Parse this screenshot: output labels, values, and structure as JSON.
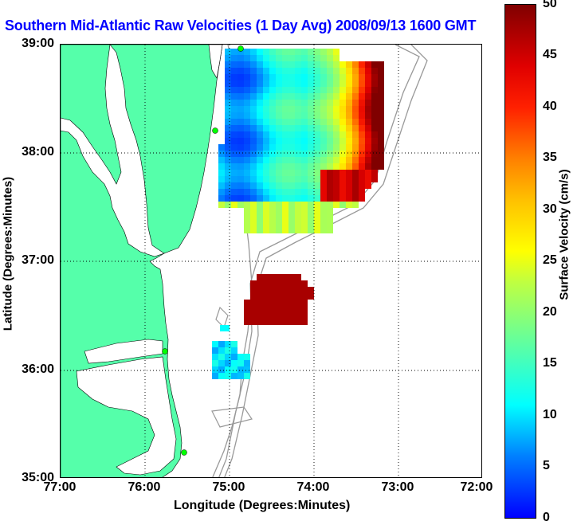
{
  "title": "Southern Mid-Atlantic Raw Velocities (1 Day Avg) 2008/09/13 1600 GMT",
  "xlabel": "Longitude (Degrees:Minutes)",
  "ylabel": "Latitude (Degrees:Minutes)",
  "x_ticks": [
    "77:00",
    "76:00",
    "75:00",
    "74:00",
    "73:00",
    "72:00"
  ],
  "y_ticks": [
    "39:00",
    "38:00",
    "37:00",
    "36:00",
    "35:00"
  ],
  "colorbar": {
    "label": "Surface Velocity (cm/s)",
    "ticks": [
      "50",
      "45",
      "40",
      "35",
      "30",
      "25",
      "20",
      "15",
      "10",
      "5",
      "0"
    ],
    "range": [
      0,
      50
    ]
  },
  "map": {
    "lon_range": [
      -77,
      -72
    ],
    "lat_range": [
      35,
      39
    ],
    "grid": true,
    "land_color": "#55ffaa",
    "stations": [
      {
        "lon": -75.13,
        "lat": 38.98
      },
      {
        "lon": -75.15,
        "lat": 38.22
      },
      {
        "lon": -75.73,
        "lat": 36.18
      },
      {
        "lon": -75.47,
        "lat": 35.25
      }
    ]
  },
  "colors": {
    "title": "#0000ff",
    "station": "#00ff00",
    "bathymetry": "#999999"
  }
}
